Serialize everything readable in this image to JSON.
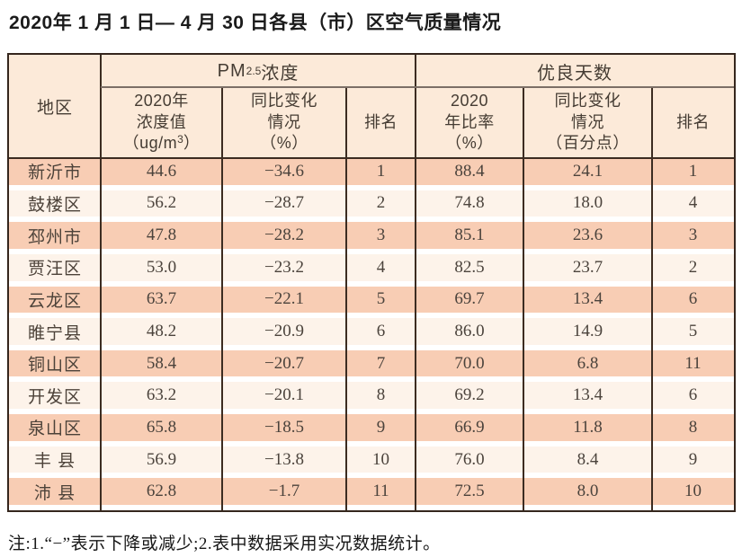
{
  "title": "2020年 1 月 1 日— 4 月 30 日各县（市）区空气质量情况",
  "table": {
    "header": {
      "region": "地区",
      "pm_group": {
        "prefix": "PM",
        "sub": "2.5",
        "suffix": " 浓度"
      },
      "good_group": "优良天数",
      "pm_value": {
        "line1": "2020年",
        "line2": "浓度值",
        "unit_open": "（ug/m",
        "unit_sup": "3",
        "unit_close": "）"
      },
      "pm_change": {
        "line1": "同比变化",
        "line2": "情况",
        "line3": "（%）"
      },
      "pm_rank": "排名",
      "good_rate": {
        "line1": "2020",
        "line2": "年比率",
        "line3": "（%）"
      },
      "good_change": {
        "line1": "同比变化",
        "line2": "情况",
        "line3": "（百分点）"
      },
      "good_rank": "排名"
    },
    "rows": [
      {
        "region": "新沂市",
        "pm_value": "44.6",
        "pm_change": "−34.6",
        "pm_rank": "1",
        "good_rate": "88.4",
        "good_change": "24.1",
        "good_rank": "1"
      },
      {
        "region": "鼓楼区",
        "pm_value": "56.2",
        "pm_change": "−28.7",
        "pm_rank": "2",
        "good_rate": "74.8",
        "good_change": "18.0",
        "good_rank": "4"
      },
      {
        "region": "邳州市",
        "pm_value": "47.8",
        "pm_change": "−28.2",
        "pm_rank": "3",
        "good_rate": "85.1",
        "good_change": "23.6",
        "good_rank": "3"
      },
      {
        "region": "贾汪区",
        "pm_value": "53.0",
        "pm_change": "−23.2",
        "pm_rank": "4",
        "good_rate": "82.5",
        "good_change": "23.7",
        "good_rank": "2"
      },
      {
        "region": "云龙区",
        "pm_value": "63.7",
        "pm_change": "−22.1",
        "pm_rank": "5",
        "good_rate": "69.7",
        "good_change": "13.4",
        "good_rank": "6"
      },
      {
        "region": "睢宁县",
        "pm_value": "48.2",
        "pm_change": "−20.9",
        "pm_rank": "6",
        "good_rate": "86.0",
        "good_change": "14.9",
        "good_rank": "5"
      },
      {
        "region": "铜山区",
        "pm_value": "58.4",
        "pm_change": "−20.7",
        "pm_rank": "7",
        "good_rate": "70.0",
        "good_change": "6.8",
        "good_rank": "11"
      },
      {
        "region": "开发区",
        "pm_value": "63.2",
        "pm_change": "−20.1",
        "pm_rank": "8",
        "good_rate": "69.2",
        "good_change": "13.4",
        "good_rank": "6"
      },
      {
        "region": "泉山区",
        "pm_value": "65.8",
        "pm_change": "−18.5",
        "pm_rank": "9",
        "good_rate": "66.9",
        "good_change": "11.8",
        "good_rank": "8"
      },
      {
        "region": "丰 县",
        "pm_value": "56.9",
        "pm_change": "−13.8",
        "pm_rank": "10",
        "good_rate": "76.0",
        "good_change": "8.4",
        "good_rank": "9"
      },
      {
        "region": "沛 县",
        "pm_value": "62.8",
        "pm_change": "−1.7",
        "pm_rank": "11",
        "good_rate": "72.5",
        "good_change": "8.0",
        "good_rank": "10"
      }
    ]
  },
  "footnote": "注:1.“−”表示下降或减少;2.表中数据采用实况数据统计。",
  "colors": {
    "border_dark": "#35261d",
    "header_bg": "#fcead9",
    "row_salmon": "#f8cdb4",
    "row_light": "#fdf3ea",
    "group_underline": "#7c6f66",
    "text_dark": "#453c33"
  }
}
